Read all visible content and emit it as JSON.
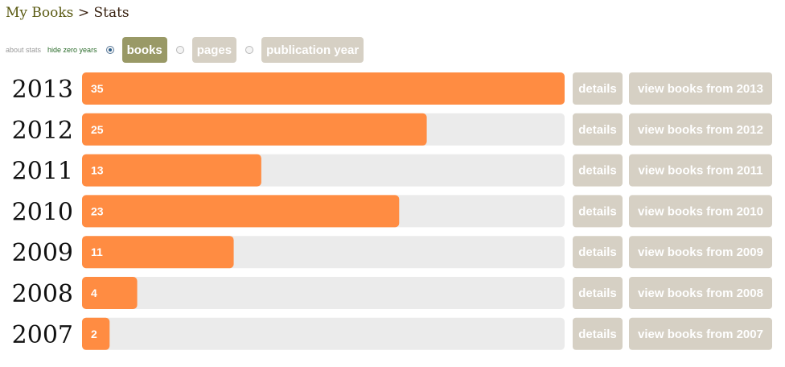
{
  "breadcrumb": {
    "root": "My Books",
    "separator": ">",
    "current": "Stats"
  },
  "controls": {
    "about_stats": "about stats",
    "hide_zero_years": "hide zero years",
    "options": [
      {
        "label": "books",
        "selected": true
      },
      {
        "label": "pages",
        "selected": false
      },
      {
        "label": "publication year",
        "selected": false
      }
    ]
  },
  "colors": {
    "bar": "#ff8c42",
    "track": "#ebebeb",
    "button": "#d6d0c4",
    "active_option": "#999966"
  },
  "chart_data": {
    "type": "bar",
    "orientation": "horizontal",
    "categories": [
      "2013",
      "2012",
      "2011",
      "2010",
      "2009",
      "2008",
      "2007"
    ],
    "values": [
      35,
      25,
      13,
      23,
      11,
      4,
      2
    ],
    "xlim": [
      0,
      35
    ],
    "row_actions": {
      "details": "details",
      "view_books": [
        "view books from 2013",
        "view books from 2012",
        "view books from 2011",
        "view books from 2010",
        "view books from 2009",
        "view books from 2008",
        "view books from 2007"
      ]
    }
  }
}
